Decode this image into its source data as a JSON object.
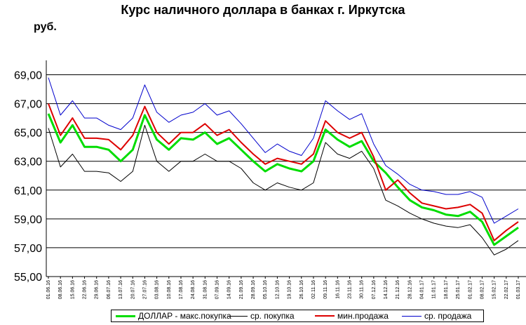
{
  "title": "Курс наличного доллара  в банках г. Иркутска",
  "unit": "руб.",
  "chart_data": {
    "type": "line",
    "title": "Курс наличного доллара  в банках г. Иркутска",
    "ylabel": "руб.",
    "ylim": [
      55,
      70
    ],
    "yticks": [
      "55,00",
      "57,00",
      "59,00",
      "61,00",
      "63,00",
      "65,00",
      "67,00",
      "69,00"
    ],
    "grid": "horizontal",
    "legend_position": "bottom",
    "x": [
      "01.06.16",
      "08.06.16",
      "15.06.16",
      "22.06.16",
      "29.06.16",
      "06.07.16",
      "13.07.16",
      "20.07.16",
      "27.07.16",
      "03.08.16",
      "10.08.16",
      "17.08.16",
      "24.08.16",
      "31.08.16",
      "07.09.16",
      "14.09.16",
      "21.09.16",
      "28.09.16",
      "05.10.16",
      "12.10.16",
      "19.10.16",
      "26.10.16",
      "02.11.16",
      "09.11.16",
      "16.11.16",
      "23.11.16",
      "30.11.16",
      "07.12.16",
      "14.12.16",
      "21.12.16",
      "28.12.16",
      "04.01.17",
      "11.01.17",
      "18.01.17",
      "25.01.17",
      "01.02.17",
      "08.02.17",
      "15.02.17",
      "22.02.17",
      "01.03.17"
    ],
    "series": [
      {
        "name": "ДОЛЛАР - макс.покупка",
        "color": "#00dd00",
        "values": [
          66.3,
          64.3,
          65.5,
          64.0,
          64.0,
          63.8,
          63.0,
          63.8,
          66.2,
          64.5,
          63.8,
          64.6,
          64.5,
          65.0,
          64.2,
          64.6,
          63.8,
          63.0,
          62.3,
          62.8,
          62.5,
          62.3,
          63.0,
          65.2,
          64.5,
          64.0,
          64.4,
          63.0,
          62.2,
          61.2,
          60.3,
          59.8,
          59.6,
          59.3,
          59.2,
          59.5,
          58.8,
          57.2,
          57.8,
          58.4
        ]
      },
      {
        "name": "ср. покупка",
        "color": "#000000",
        "values": [
          65.3,
          62.6,
          63.5,
          62.3,
          62.3,
          62.2,
          61.6,
          62.3,
          65.5,
          63.0,
          62.3,
          63.0,
          63.0,
          63.5,
          63.0,
          63.0,
          62.5,
          61.5,
          61.0,
          61.5,
          61.2,
          61.0,
          61.5,
          64.3,
          63.5,
          63.2,
          63.7,
          62.5,
          60.3,
          59.9,
          59.4,
          59.0,
          58.7,
          58.5,
          58.4,
          58.6,
          57.7,
          56.5,
          56.9,
          57.5
        ]
      },
      {
        "name": "мин.продажа",
        "color": "#dd0000",
        "values": [
          67.0,
          64.8,
          66.0,
          64.6,
          64.6,
          64.5,
          63.8,
          64.8,
          66.8,
          65.0,
          64.2,
          65.0,
          65.0,
          65.6,
          64.8,
          65.2,
          64.3,
          63.5,
          62.8,
          63.2,
          63.0,
          62.8,
          63.5,
          65.8,
          65.0,
          64.6,
          65.0,
          63.3,
          61.0,
          61.7,
          60.8,
          60.1,
          59.9,
          59.7,
          59.8,
          60.0,
          59.4,
          57.5,
          58.2,
          58.8
        ]
      },
      {
        "name": "ср. продажа",
        "color": "#0000cc",
        "values": [
          68.8,
          66.2,
          67.2,
          66.0,
          66.0,
          65.5,
          65.2,
          66.0,
          68.3,
          66.4,
          65.7,
          66.2,
          66.4,
          67.0,
          66.2,
          66.5,
          65.6,
          64.6,
          63.6,
          64.2,
          63.7,
          63.4,
          64.6,
          67.2,
          66.5,
          65.9,
          66.3,
          64.2,
          62.7,
          62.1,
          61.4,
          61.0,
          60.9,
          60.7,
          60.7,
          60.9,
          60.5,
          58.7,
          59.2,
          59.7
        ]
      }
    ]
  }
}
